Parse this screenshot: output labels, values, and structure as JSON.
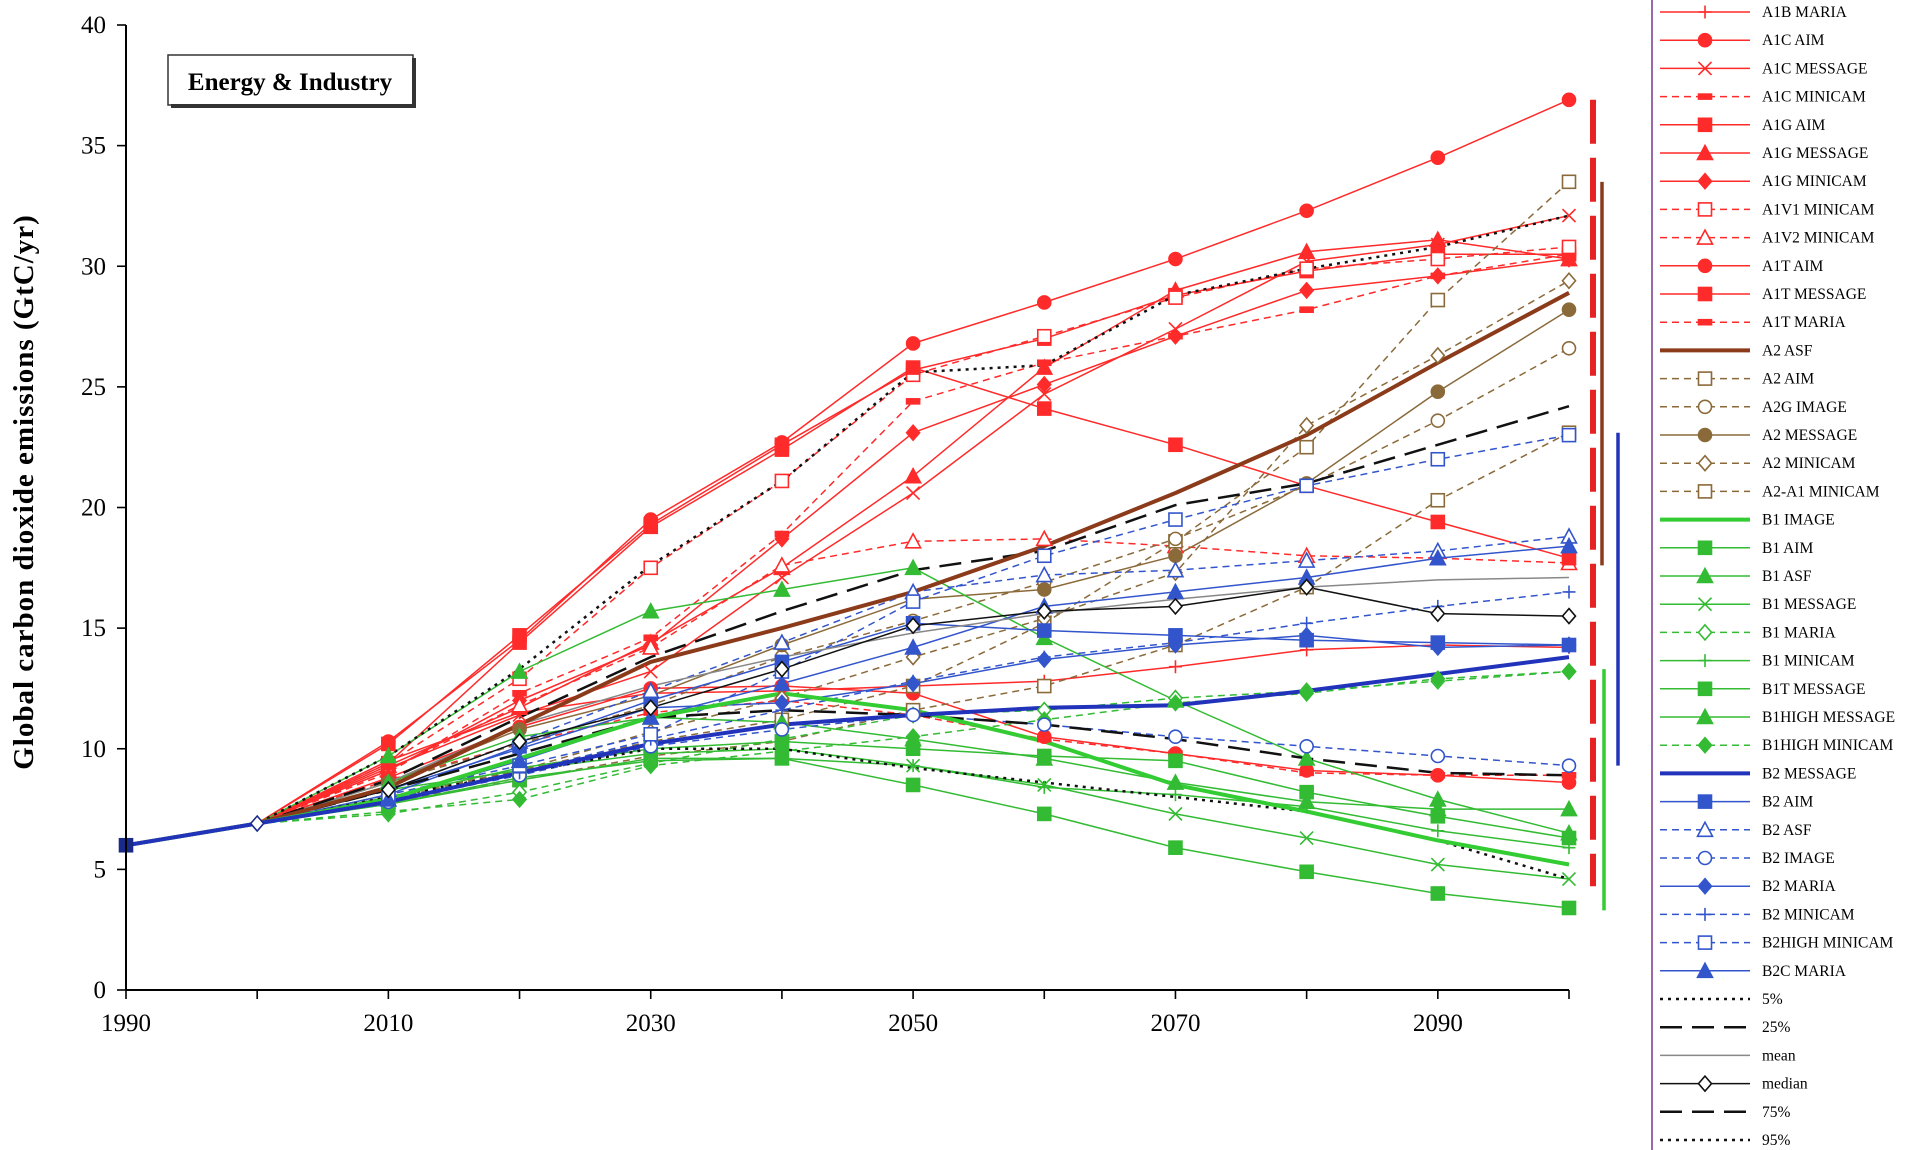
{
  "chart_data": {
    "type": "line",
    "title": "Energy & Industry",
    "ylabel": "Global carbon dioxide emissions  (GtC/yr)",
    "xlabel": "",
    "xlim": [
      1990,
      2100
    ],
    "ylim": [
      0,
      40
    ],
    "xticks": [
      1990,
      2010,
      2030,
      2050,
      2070,
      2090
    ],
    "yticks": [
      0,
      5,
      10,
      15,
      20,
      25,
      30,
      35,
      40
    ],
    "x": [
      1990,
      2000,
      2010,
      2020,
      2030,
      2040,
      2050,
      2060,
      2070,
      2080,
      2090,
      2100
    ],
    "grid": false,
    "legend_position": "right",
    "series": [
      {
        "name": "A1B MARIA",
        "color": "#ff2a2a",
        "dash": "solid",
        "marker": "plus",
        "width": 1.5,
        "values": [
          6.0,
          6.9,
          9.5,
          11.5,
          12.3,
          12.4,
          12.6,
          12.8,
          13.4,
          14.1,
          14.3,
          14.2
        ]
      },
      {
        "name": "A1C AIM",
        "color": "#ff2a2a",
        "dash": "solid",
        "marker": "circle",
        "width": 1.5,
        "values": [
          6.0,
          6.9,
          10.3,
          14.5,
          19.5,
          22.7,
          26.8,
          28.5,
          30.3,
          32.3,
          34.5,
          36.9
        ]
      },
      {
        "name": "A1C MESSAGE",
        "color": "#ff2a2a",
        "dash": "solid",
        "marker": "x",
        "width": 1.5,
        "values": [
          6.0,
          6.9,
          9.2,
          11.4,
          13.2,
          17.1,
          20.6,
          24.7,
          27.4,
          30.2,
          30.9,
          32.1
        ]
      },
      {
        "name": "A1C MINICAM",
        "color": "#ff2a2a",
        "dash": "dashed",
        "marker": "dash",
        "width": 1.5,
        "values": [
          6.0,
          6.9,
          9.0,
          12.3,
          14.6,
          18.9,
          24.4,
          26.0,
          27.1,
          28.2,
          29.6,
          30.5
        ]
      },
      {
        "name": "A1G AIM",
        "color": "#ff2a2a",
        "dash": "solid",
        "marker": "square",
        "width": 1.5,
        "values": [
          6.0,
          6.9,
          10.2,
          14.7,
          19.3,
          22.6,
          25.7,
          27.0,
          28.8,
          29.8,
          30.5,
          30.5
        ]
      },
      {
        "name": "A1G MESSAGE",
        "color": "#ff2a2a",
        "dash": "solid",
        "marker": "triangle",
        "width": 1.5,
        "values": [
          6.0,
          6.9,
          9.3,
          11.7,
          14.4,
          17.5,
          21.3,
          25.8,
          29.0,
          30.6,
          31.1,
          30.3
        ]
      },
      {
        "name": "A1G MINICAM",
        "color": "#ff2a2a",
        "dash": "solid",
        "marker": "diamond",
        "width": 1.5,
        "values": [
          6.0,
          6.9,
          9.1,
          12.0,
          14.3,
          18.7,
          23.1,
          25.1,
          27.1,
          29.0,
          29.6,
          30.3
        ]
      },
      {
        "name": "A1V1 MINICAM",
        "color": "#ff2a2a",
        "dash": "dashed",
        "marker": "square-open",
        "width": 1.5,
        "values": [
          6.0,
          6.9,
          9.4,
          12.9,
          17.5,
          21.1,
          25.5,
          27.1,
          28.7,
          29.9,
          30.3,
          30.8
        ]
      },
      {
        "name": "A1V2 MINICAM",
        "color": "#ff2a2a",
        "dash": "dashed",
        "marker": "triangle-open",
        "width": 1.5,
        "values": [
          6.0,
          6.9,
          9.1,
          11.8,
          14.2,
          17.6,
          18.6,
          18.7,
          18.4,
          18.0,
          17.9,
          17.7
        ]
      },
      {
        "name": "A1T AIM",
        "color": "#ff2a2a",
        "dash": "solid",
        "marker": "circle",
        "width": 1.5,
        "values": [
          6.0,
          6.9,
          8.8,
          10.9,
          12.5,
          12.6,
          12.3,
          10.5,
          9.8,
          9.1,
          8.9,
          8.6
        ]
      },
      {
        "name": "A1T MESSAGE",
        "color": "#ff2a2a",
        "dash": "solid",
        "marker": "square",
        "width": 1.5,
        "values": [
          6.0,
          6.9,
          9.4,
          14.4,
          19.2,
          22.4,
          25.8,
          24.1,
          22.6,
          20.9,
          19.4,
          17.9
        ]
      },
      {
        "name": "A1T MARIA",
        "color": "#ff2a2a",
        "dash": "dashed",
        "marker": "dash",
        "width": 1.5,
        "values": [
          6.0,
          6.9,
          8.7,
          10.2,
          11.5,
          12.0,
          11.4,
          10.4,
          9.8,
          9.0,
          8.9,
          8.9
        ]
      },
      {
        "name": "A2 ASF",
        "color": "#8b3a1a",
        "dash": "solid",
        "marker": "none",
        "width": 4,
        "values": [
          6.0,
          6.9,
          8.4,
          11.0,
          13.6,
          15.0,
          16.5,
          18.4,
          20.6,
          23.0,
          26.0,
          28.9
        ]
      },
      {
        "name": "A2 AIM",
        "color": "#8b6a3a",
        "dash": "dashed",
        "marker": "square-open",
        "width": 1.5,
        "values": [
          6.0,
          6.9,
          8.0,
          9.1,
          10.3,
          11.2,
          12.6,
          15.2,
          18.6,
          22.5,
          28.6,
          33.5
        ]
      },
      {
        "name": "A2G IMAGE",
        "color": "#8b6a3a",
        "dash": "dashed",
        "marker": "circle-open",
        "width": 1.5,
        "values": [
          6.0,
          6.9,
          8.6,
          10.2,
          11.8,
          13.8,
          15.3,
          16.9,
          18.7,
          20.9,
          23.6,
          26.6
        ]
      },
      {
        "name": "A2 MESSAGE",
        "color": "#8b6a3a",
        "dash": "solid",
        "marker": "circle",
        "width": 1.5,
        "values": [
          6.0,
          6.9,
          8.6,
          10.8,
          12.2,
          14.3,
          16.2,
          16.6,
          18.0,
          21.0,
          24.8,
          28.2
        ]
      },
      {
        "name": "A2 MINICAM",
        "color": "#8b6a3a",
        "dash": "dashed",
        "marker": "diamond-open",
        "width": 1.5,
        "values": [
          6.0,
          6.9,
          7.9,
          9.1,
          10.7,
          12.1,
          13.8,
          15.4,
          17.3,
          23.4,
          26.3,
          29.4
        ]
      },
      {
        "name": "A2-A1 MINICAM",
        "color": "#8b6a3a",
        "dash": "dashed",
        "marker": "square-open",
        "width": 1.5,
        "values": [
          6.0,
          6.9,
          7.8,
          8.7,
          9.7,
          10.3,
          11.6,
          12.6,
          14.3,
          16.7,
          20.3,
          23.1
        ]
      },
      {
        "name": "B1 IMAGE",
        "color": "#33cc33",
        "dash": "solid",
        "marker": "none",
        "width": 4,
        "values": [
          6.0,
          6.9,
          7.9,
          9.6,
          11.3,
          12.3,
          11.6,
          10.3,
          8.5,
          7.4,
          6.2,
          5.2
        ]
      },
      {
        "name": "B1 AIM",
        "color": "#33bb33",
        "dash": "solid",
        "marker": "square",
        "width": 1.5,
        "values": [
          6.0,
          6.9,
          7.7,
          8.7,
          9.6,
          9.6,
          8.5,
          7.3,
          5.9,
          4.9,
          4.0,
          3.4
        ]
      },
      {
        "name": "B1 ASF",
        "color": "#33bb33",
        "dash": "solid",
        "marker": "triangle",
        "width": 1.5,
        "values": [
          6.0,
          6.9,
          9.7,
          13.2,
          15.7,
          16.6,
          17.5,
          14.6,
          12.0,
          9.6,
          7.9,
          6.5
        ]
      },
      {
        "name": "B1 MESSAGE",
        "color": "#33bb33",
        "dash": "solid",
        "marker": "x",
        "width": 1.5,
        "values": [
          6.0,
          6.9,
          7.7,
          8.8,
          9.5,
          9.6,
          9.3,
          8.5,
          7.3,
          6.3,
          5.2,
          4.6
        ]
      },
      {
        "name": "B1 MARIA",
        "color": "#33bb33",
        "dash": "dashed",
        "marker": "diamond-open",
        "width": 1.5,
        "values": [
          6.0,
          6.9,
          7.3,
          8.2,
          9.4,
          10.4,
          11.4,
          11.6,
          12.1,
          12.4,
          12.8,
          13.2
        ]
      },
      {
        "name": "B1 MINICAM",
        "color": "#33bb33",
        "dash": "solid",
        "marker": "plus",
        "width": 1.5,
        "values": [
          6.0,
          6.9,
          8.3,
          9.1,
          9.8,
          10.0,
          9.3,
          8.4,
          8.1,
          7.6,
          6.6,
          5.9
        ]
      },
      {
        "name": "B1T MESSAGE",
        "color": "#33bb33",
        "dash": "solid",
        "marker": "square",
        "width": 1.5,
        "values": [
          6.0,
          6.9,
          8.0,
          9.2,
          10.0,
          10.3,
          10.0,
          9.7,
          9.5,
          8.2,
          7.2,
          6.3
        ]
      },
      {
        "name": "B1HIGH MESSAGE",
        "color": "#33bb33",
        "dash": "solid",
        "marker": "triangle",
        "width": 1.5,
        "values": [
          6.0,
          6.9,
          8.6,
          10.5,
          11.3,
          11.1,
          10.4,
          9.6,
          8.6,
          7.8,
          7.5,
          7.5
        ]
      },
      {
        "name": "B1HIGH MINICAM",
        "color": "#33bb33",
        "dash": "dashed",
        "marker": "diamond",
        "width": 1.5,
        "values": [
          6.0,
          6.9,
          7.4,
          7.9,
          9.3,
          9.9,
          10.5,
          11.2,
          11.9,
          12.3,
          12.9,
          13.2
        ]
      },
      {
        "name": "B2 MESSAGE",
        "color": "#2233bb",
        "dash": "solid",
        "marker": "none",
        "width": 4,
        "values": [
          6.0,
          6.9,
          7.8,
          9.0,
          10.2,
          11.0,
          11.4,
          11.7,
          11.8,
          12.4,
          13.1,
          13.8
        ]
      },
      {
        "name": "B2 AIM",
        "color": "#3355cc",
        "dash": "solid",
        "marker": "square",
        "width": 1.5,
        "values": [
          6.0,
          6.9,
          8.1,
          10.1,
          12.0,
          13.6,
          15.2,
          14.9,
          14.7,
          14.5,
          14.4,
          14.3
        ]
      },
      {
        "name": "B2 ASF",
        "color": "#3355cc",
        "dash": "dashed",
        "marker": "triangle-open",
        "width": 1.5,
        "values": [
          6.0,
          6.9,
          8.3,
          10.3,
          12.4,
          14.4,
          16.5,
          17.2,
          17.4,
          17.8,
          18.2,
          18.8
        ]
      },
      {
        "name": "B2 IMAGE",
        "color": "#3355cc",
        "dash": "dashed",
        "marker": "circle-open",
        "width": 1.5,
        "values": [
          6.0,
          6.9,
          7.8,
          8.9,
          10.1,
          10.8,
          11.4,
          11.0,
          10.5,
          10.1,
          9.7,
          9.3
        ]
      },
      {
        "name": "B2 MARIA",
        "color": "#3355cc",
        "dash": "solid",
        "marker": "diamond",
        "width": 1.5,
        "values": [
          6.0,
          6.9,
          8.3,
          10.0,
          11.7,
          11.9,
          12.7,
          13.7,
          14.3,
          14.7,
          14.2,
          14.3
        ]
      },
      {
        "name": "B2 MINICAM",
        "color": "#3355cc",
        "dash": "dashed",
        "marker": "plus",
        "width": 1.5,
        "values": [
          6.0,
          6.9,
          7.9,
          9.0,
          10.4,
          11.6,
          12.8,
          13.8,
          14.4,
          15.2,
          15.9,
          16.5
        ]
      },
      {
        "name": "B2HIGH MINICAM",
        "color": "#3355cc",
        "dash": "dashed",
        "marker": "square-open",
        "width": 1.5,
        "values": [
          6.0,
          6.9,
          8.1,
          9.3,
          10.6,
          13.2,
          16.1,
          18.0,
          19.5,
          20.9,
          22.0,
          23.0
        ]
      },
      {
        "name": "B2C MARIA",
        "color": "#3355cc",
        "dash": "solid",
        "marker": "triangle",
        "width": 1.5,
        "values": [
          6.0,
          6.9,
          7.9,
          9.5,
          11.3,
          12.7,
          14.2,
          15.9,
          16.5,
          17.1,
          17.9,
          18.4
        ]
      },
      {
        "name": "5%",
        "color": "#111111",
        "dash": "dot",
        "marker": "none",
        "width": 2.5,
        "values": [
          6.0,
          6.9,
          8.0,
          9.0,
          10.0,
          10.0,
          9.2,
          8.6,
          8.0,
          7.4,
          6.2,
          4.6
        ]
      },
      {
        "name": "25%",
        "color": "#111111",
        "dash": "longdash",
        "marker": "none",
        "width": 2.5,
        "values": [
          6.0,
          6.9,
          8.3,
          9.8,
          11.3,
          11.6,
          11.4,
          11.0,
          10.4,
          9.6,
          9.0,
          8.9
        ]
      },
      {
        "name": "mean",
        "color": "#888888",
        "dash": "solid",
        "marker": "none",
        "width": 1.5,
        "values": [
          6.0,
          6.9,
          8.6,
          11.0,
          12.6,
          13.8,
          14.8,
          15.6,
          16.2,
          16.7,
          17.0,
          17.1
        ]
      },
      {
        "name": "median",
        "color": "#111111",
        "dash": "solid",
        "marker": "diamond-open",
        "width": 1.5,
        "values": [
          6.0,
          6.9,
          8.3,
          10.3,
          11.7,
          13.3,
          15.1,
          15.7,
          15.9,
          16.7,
          15.6,
          15.5
        ]
      },
      {
        "name": "75%",
        "color": "#111111",
        "dash": "longdash",
        "marker": "none",
        "width": 2.5,
        "values": [
          6.0,
          6.9,
          8.7,
          11.3,
          13.8,
          15.7,
          17.4,
          18.2,
          20.1,
          21.0,
          22.6,
          24.2
        ]
      },
      {
        "name": "95%",
        "color": "#111111",
        "dash": "dot",
        "marker": "none",
        "width": 2.5,
        "values": [
          6.0,
          6.9,
          9.7,
          13.3,
          17.6,
          21.1,
          25.6,
          25.9,
          28.8,
          29.9,
          30.8,
          32.1
        ]
      }
    ],
    "range_bars": [
      {
        "group": "A1",
        "color": "#e62222",
        "dash": "longdash",
        "ymin": 4.3,
        "ymax": 36.9
      },
      {
        "group": "A2",
        "color": "#8b3a1a",
        "dash": "solid",
        "ymin": 17.6,
        "ymax": 33.5
      },
      {
        "group": "B1",
        "color": "#33cc33",
        "dash": "solid",
        "ymin": 3.3,
        "ymax": 13.3
      },
      {
        "group": "B2",
        "color": "#2233bb",
        "dash": "solid",
        "ymin": 9.3,
        "ymax": 23.1
      }
    ]
  }
}
